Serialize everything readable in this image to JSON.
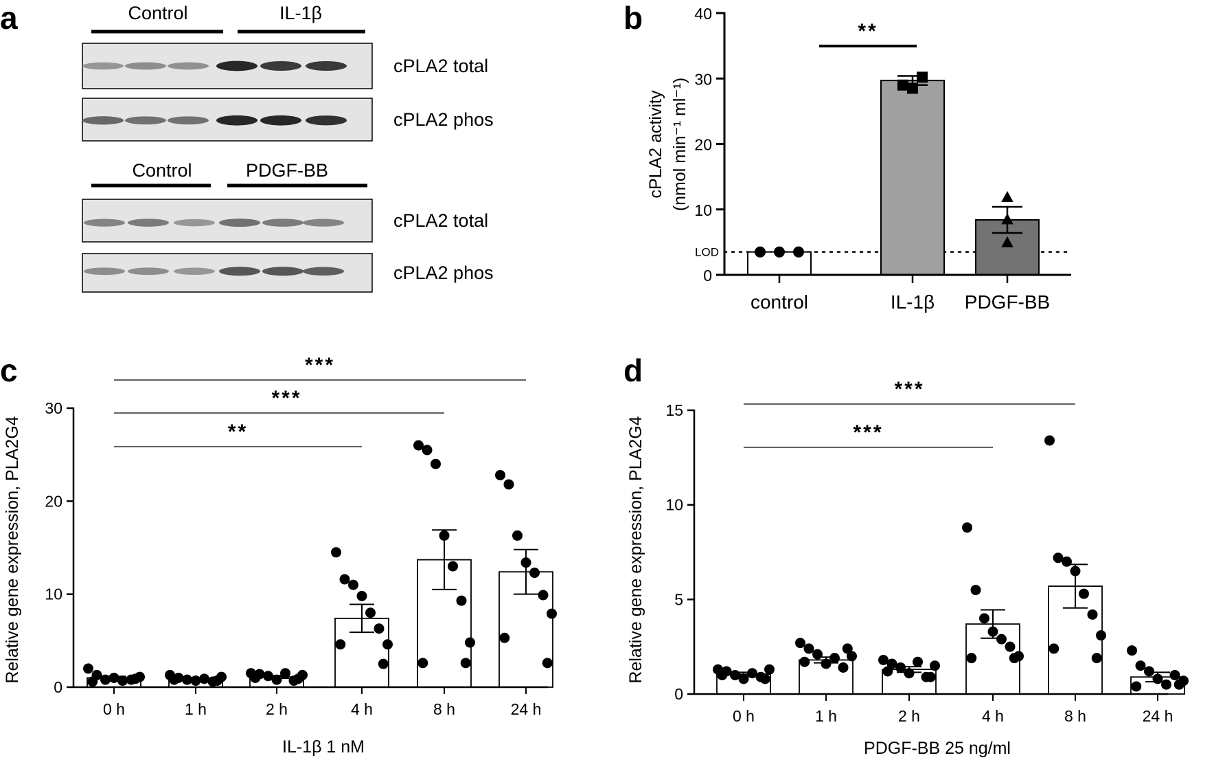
{
  "panel_letters": [
    "a",
    "b",
    "c",
    "d"
  ],
  "panel_a": {
    "blot1": {
      "groups": [
        "Control",
        "IL-1β"
      ],
      "rows": [
        {
          "label": "cPLA2 total",
          "intensities": [
            0.35,
            0.4,
            0.38,
            0.95,
            0.85,
            0.85
          ]
        },
        {
          "label": "cPLA2 phos",
          "intensities": [
            0.6,
            0.55,
            0.55,
            0.95,
            0.95,
            0.9
          ]
        }
      ]
    },
    "blot2": {
      "groups": [
        "Control",
        "PDGF-BB"
      ],
      "rows": [
        {
          "label": "cPLA2 total",
          "intensities": [
            0.45,
            0.5,
            0.35,
            0.55,
            0.5,
            0.45
          ]
        },
        {
          "label": "cPLA2 phos",
          "intensities": [
            0.4,
            0.4,
            0.35,
            0.7,
            0.7,
            0.65
          ]
        }
      ]
    }
  },
  "chart_data": [
    {
      "panel": "b",
      "type": "bar",
      "categories": [
        "control",
        "IL-1β",
        "PDGF-BB"
      ],
      "values": [
        3.5,
        29.7,
        8.4
      ],
      "sem": [
        0,
        0.7,
        2.0
      ],
      "points": [
        [
          3.5,
          3.5,
          3.5
        ],
        [
          29.0,
          30.2,
          28.5
        ],
        [
          11.8,
          8.4,
          4.9
        ]
      ],
      "markers": [
        "circle",
        "square",
        "triangle"
      ],
      "bar_colors": [
        "#ffffff",
        "#a0a0a0",
        "#737373"
      ],
      "ylabel_line1": "cPLA2 activity",
      "ylabel_line2": "(nmol min⁻¹ ml⁻¹)",
      "ylim": [
        0,
        40
      ],
      "yticks": [
        0,
        10,
        20,
        30,
        40
      ],
      "lod": {
        "value": 3.5,
        "label": "LOD"
      },
      "significance": [
        {
          "from": 0,
          "to": 1,
          "label": "**"
        }
      ]
    },
    {
      "panel": "c",
      "type": "bar",
      "categories": [
        "0 h",
        "1 h",
        "2 h",
        "4 h",
        "8 h",
        "24 h"
      ],
      "values": [
        1.0,
        0.9,
        1.1,
        7.4,
        13.7,
        12.4
      ],
      "sem": [
        0.15,
        0.1,
        0.15,
        1.5,
        3.2,
        2.4
      ],
      "points": [
        [
          2.0,
          1.3,
          0.8,
          1.0,
          0.7,
          0.8,
          1.1,
          0.6,
          0.9
        ],
        [
          1.3,
          1.0,
          0.8,
          0.7,
          0.9,
          0.6,
          1.1,
          0.8,
          0.7
        ],
        [
          1.5,
          1.4,
          1.2,
          0.8,
          1.5,
          0.7,
          1.3,
          1.0,
          0.9
        ],
        [
          14.5,
          11.6,
          11.0,
          9.8,
          8.0,
          6.3,
          4.6,
          4.6,
          2.5
        ],
        [
          26.0,
          25.5,
          24.0,
          16.3,
          13.0,
          9.3,
          4.8,
          2.6,
          2.6
        ],
        [
          22.8,
          21.8,
          16.3,
          13.4,
          12.3,
          9.9,
          7.9,
          5.3,
          2.6
        ]
      ],
      "xlabel": "IL-1β 1 nM",
      "ylabel": "Relative gene expression, PLA2G4",
      "ylim": [
        0,
        30
      ],
      "yticks": [
        0,
        10,
        20,
        30
      ],
      "significance": [
        {
          "from": 0,
          "to": 5,
          "label": "***"
        },
        {
          "from": 0,
          "to": 4,
          "label": "***"
        },
        {
          "from": 0,
          "to": 3,
          "label": "**"
        }
      ]
    },
    {
      "panel": "d",
      "type": "bar",
      "categories": [
        "0 h",
        "1 h",
        "2 h",
        "4 h",
        "8 h",
        "24 h"
      ],
      "values": [
        1.05,
        1.8,
        1.3,
        3.7,
        5.7,
        0.9
      ],
      "sem": [
        0.1,
        0.15,
        0.15,
        0.75,
        1.15,
        0.25
      ],
      "points": [
        [
          1.3,
          1.2,
          1.0,
          0.8,
          1.1,
          0.9,
          1.3,
          1.0,
          0.8
        ],
        [
          2.7,
          2.4,
          2.1,
          1.6,
          1.9,
          1.4,
          2.0,
          1.7,
          2.4
        ],
        [
          1.8,
          1.6,
          1.4,
          1.1,
          1.7,
          0.9,
          1.5,
          1.2,
          0.9
        ],
        [
          8.8,
          5.5,
          4.0,
          3.3,
          2.9,
          2.5,
          2.0,
          1.9,
          1.9
        ],
        [
          13.4,
          7.2,
          7.0,
          6.5,
          5.3,
          4.2,
          3.1,
          2.4,
          1.9
        ],
        [
          2.3,
          1.5,
          1.2,
          0.8,
          0.5,
          1.0,
          0.7,
          0.4,
          0.5
        ]
      ],
      "xlabel": "PDGF-BB 25 ng/ml",
      "ylabel": "Relative gene expression, PLA2G4",
      "ylim": [
        0,
        15
      ],
      "yticks": [
        0,
        5,
        10,
        15
      ],
      "significance": [
        {
          "from": 0,
          "to": 4,
          "label": "***"
        },
        {
          "from": 0,
          "to": 3,
          "label": "***"
        }
      ]
    }
  ]
}
